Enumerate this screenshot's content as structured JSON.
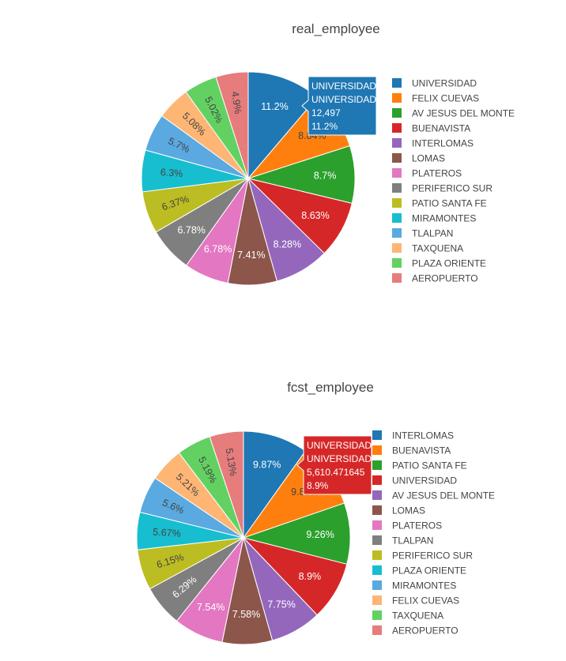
{
  "chart_data": [
    {
      "type": "pie",
      "title": "real_employee",
      "labels": [
        "UNIVERSIDAD",
        "FELIX CUEVAS",
        "AV JESUS DEL MONTE",
        "BUENAVISTA",
        "INTERLOMAS",
        "LOMAS",
        "PLATEROS",
        "PERIFERICO SUR",
        "PATIO SANTA FE",
        "MIRAMONTES",
        "TLALPAN",
        "TAXQUENA",
        "PLAZA ORIENTE",
        "AEROPUERTO"
      ],
      "percents": [
        11.2,
        8.84,
        8.7,
        8.63,
        8.28,
        7.41,
        6.78,
        6.78,
        6.37,
        6.3,
        5.7,
        5.08,
        5.02,
        4.9
      ],
      "colors": [
        "#1f77b4",
        "#ff7f0e",
        "#2ca02c",
        "#d62728",
        "#9467bd",
        "#8c564b",
        "#e377c2",
        "#7f7f7f",
        "#bcbd22",
        "#17becf",
        "#5aa9e0",
        "#ffb574",
        "#62d162",
        "#e67c7c"
      ],
      "direction": "clockwise",
      "legend_position": "right",
      "hover": {
        "slice_index": 0,
        "lines": [
          "UNIVERSIDAD",
          "UNIVERSIDAD",
          "12,497",
          "11.2%"
        ]
      }
    },
    {
      "type": "pie",
      "title": "fcst_employee",
      "labels": [
        "INTERLOMAS",
        "BUENAVISTA",
        "PATIO SANTA FE",
        "UNIVERSIDAD",
        "AV JESUS DEL MONTE",
        "LOMAS",
        "PLATEROS",
        "TLALPAN",
        "PERIFERICO SUR",
        "PLAZA ORIENTE",
        "MIRAMONTES",
        "FELIX CUEVAS",
        "TAXQUENA",
        "AEROPUERTO"
      ],
      "percents": [
        9.87,
        9.85,
        9.26,
        8.9,
        7.75,
        7.58,
        7.54,
        6.29,
        6.15,
        5.67,
        5.6,
        5.21,
        5.19,
        5.13
      ],
      "colors": [
        "#1f77b4",
        "#ff7f0e",
        "#2ca02c",
        "#d62728",
        "#9467bd",
        "#8c564b",
        "#e377c2",
        "#7f7f7f",
        "#bcbd22",
        "#17becf",
        "#5aa9e0",
        "#ffb574",
        "#62d162",
        "#e67c7c"
      ],
      "direction": "clockwise",
      "legend_position": "right",
      "hover": {
        "slice_index": 3,
        "lines": [
          "UNIVERSIDAD",
          "UNIVERSIDAD",
          "5,610.471645",
          "8.9%"
        ]
      }
    }
  ]
}
